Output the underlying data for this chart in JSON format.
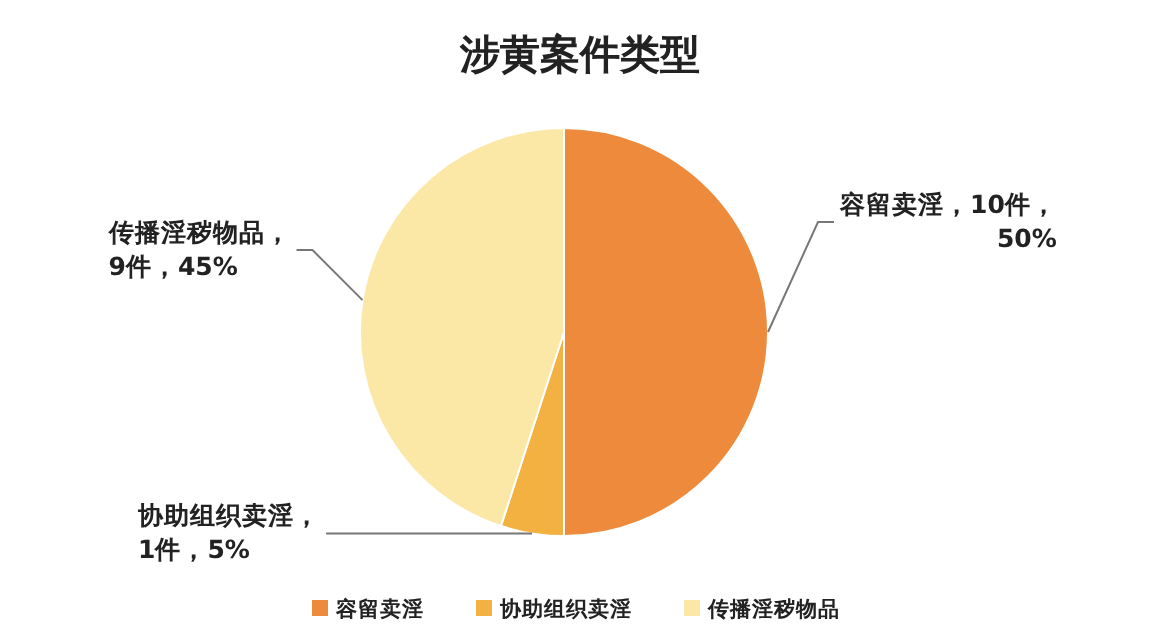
{
  "chart_data": {
    "type": "pie",
    "title": "涉黄案件类型",
    "categories": [
      "容留卖淫",
      "协助组织卖淫",
      "传播淫秽物品"
    ],
    "values": [
      10,
      1,
      9
    ],
    "value_labels": [
      "容留卖淫，10件，\n50%",
      "协助组织卖淫，\n1件，5%",
      "传播淫秽物品，\n9件，45%"
    ],
    "colors": [
      "#ee8a3c",
      "#f2b140",
      "#fbe7a6"
    ],
    "legend": "bottom"
  }
}
